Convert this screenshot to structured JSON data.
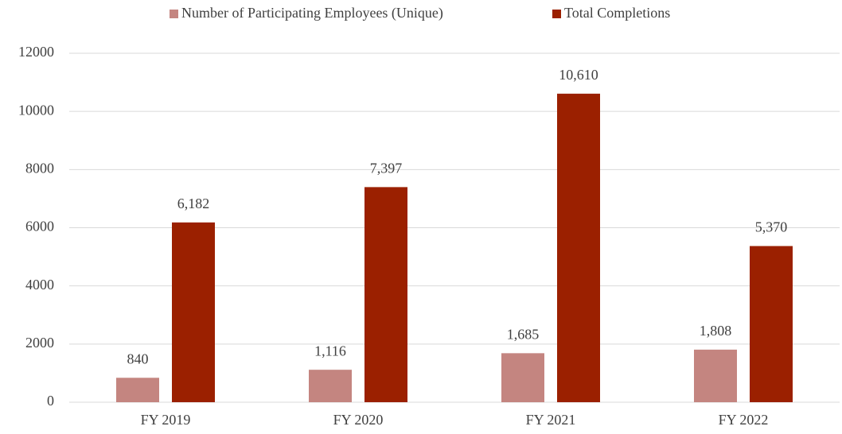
{
  "chart_data": {
    "type": "bar",
    "categories": [
      "FY 2019",
      "FY 2020",
      "FY 2021",
      "FY 2022"
    ],
    "series": [
      {
        "name": "Number of Participating Employees (Unique)",
        "color": "#c48580",
        "values": [
          840,
          1116,
          1685,
          1808
        ],
        "value_labels": [
          "840",
          "1,116",
          "1,685",
          "1,808"
        ]
      },
      {
        "name": "Total Completions",
        "color": "#9b2000",
        "values": [
          6182,
          7397,
          10610,
          5370
        ],
        "value_labels": [
          "6,182",
          "7,397",
          "10,610",
          "5,370"
        ]
      }
    ],
    "ylim": [
      0,
      12000
    ],
    "yticks": [
      0,
      2000,
      4000,
      6000,
      8000,
      10000,
      12000
    ],
    "grid": true,
    "legend": "top"
  }
}
